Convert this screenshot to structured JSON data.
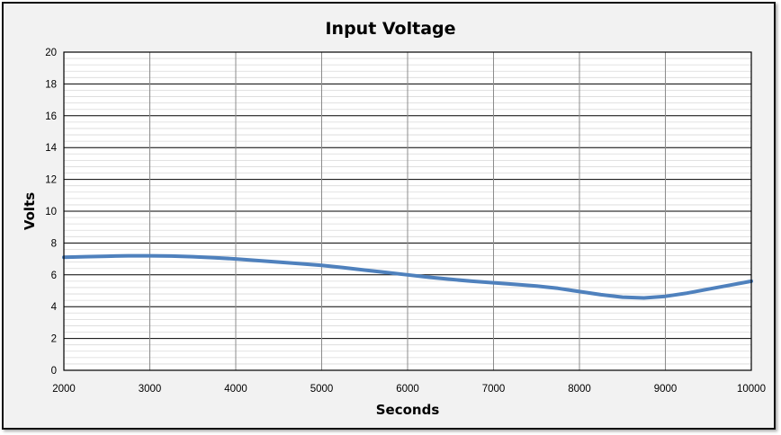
{
  "chart_data": {
    "type": "line",
    "title": "Input Voltage",
    "xlabel": "Seconds",
    "ylabel": "Volts",
    "xlim": [
      2000,
      10000
    ],
    "ylim": [
      0,
      20
    ],
    "x_ticks": [
      2000,
      3000,
      4000,
      5000,
      6000,
      7000,
      8000,
      9000,
      10000
    ],
    "y_ticks": [
      0,
      2,
      4,
      6,
      8,
      10,
      12,
      14,
      16,
      18,
      20
    ],
    "grid": true,
    "legend": "none",
    "series_color": "#4f81bd",
    "series": [
      {
        "x": [
          2000,
          2250,
          2500,
          2750,
          3000,
          3250,
          3500,
          3750,
          4000,
          4250,
          4500,
          4750,
          5000,
          5250,
          5500,
          5750,
          6000,
          6250,
          6500,
          6750,
          7000,
          7250,
          7500,
          7750,
          8000,
          8250,
          8500,
          8750,
          9000,
          9250,
          9500,
          9750,
          10000
        ],
        "values": [
          7.1,
          7.14,
          7.17,
          7.2,
          7.2,
          7.18,
          7.14,
          7.08,
          7.0,
          6.9,
          6.8,
          6.7,
          6.6,
          6.45,
          6.3,
          6.15,
          6.0,
          5.85,
          5.72,
          5.6,
          5.5,
          5.4,
          5.3,
          5.15,
          4.95,
          4.75,
          4.6,
          4.55,
          4.65,
          4.85,
          5.1,
          5.35,
          5.6
        ]
      }
    ]
  }
}
